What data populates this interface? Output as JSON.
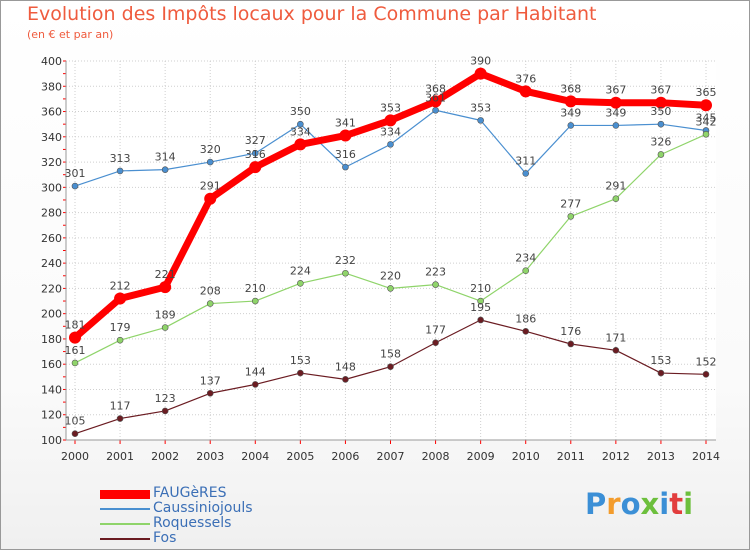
{
  "header": {
    "title": "Evolution des Impôts locaux pour la Commune par Habitant",
    "subtitle": "(en € et par an)"
  },
  "brand": {
    "logo_text": "Proxiti",
    "logo_colors": [
      "#3b8fd6",
      "#f39c2c",
      "#3b8fd6",
      "#6cbf3c",
      "#3b8fd6",
      "#e23d3d",
      "#6cbf3c"
    ]
  },
  "chart_data": {
    "type": "line",
    "title": "Evolution des Impôts locaux pour la Commune par Habitant",
    "subtitle": "(en € et par an)",
    "xlabel": "",
    "ylabel": "",
    "x": [
      "2000",
      "2001",
      "2002",
      "2003",
      "2004",
      "2005",
      "2006",
      "2007",
      "2008",
      "2009",
      "2010",
      "2011",
      "2012",
      "2013",
      "2014"
    ],
    "ylim": [
      100,
      400
    ],
    "yticks": [
      100,
      120,
      140,
      160,
      180,
      200,
      220,
      240,
      260,
      280,
      300,
      320,
      340,
      360,
      380,
      400
    ],
    "grid": true,
    "legend": "bottom-left",
    "series": [
      {
        "name": "FAUGèRES",
        "color": "#ff0000",
        "values": [
          181,
          212,
          221,
          291,
          316,
          334,
          341,
          353,
          368,
          390,
          376,
          368,
          367,
          367,
          365
        ],
        "labels": [
          "181",
          "212",
          "221",
          "291",
          "316",
          "334",
          "341",
          "353",
          "368",
          "390",
          "376",
          "368",
          "367",
          "367",
          "365"
        ]
      },
      {
        "name": "Caussiniojouls",
        "color": "#4a8fd0",
        "values": [
          301,
          313,
          314,
          320,
          327,
          350,
          316,
          334,
          361,
          353,
          311,
          349,
          349,
          350,
          345
        ],
        "labels": [
          "301",
          "313",
          "314",
          "320",
          "327",
          "350",
          "316",
          "334",
          "361",
          "353",
          "311",
          "349",
          "349",
          "350",
          "345"
        ]
      },
      {
        "name": "Roquessels",
        "color": "#8fd46a",
        "values": [
          161,
          179,
          189,
          208,
          210,
          224,
          232,
          220,
          223,
          210,
          234,
          277,
          291,
          326,
          342
        ],
        "labels": [
          "161",
          "179",
          "189",
          "208",
          "210",
          "224",
          "232",
          "220",
          "223",
          "210",
          "234",
          "277",
          "291",
          "326",
          "342"
        ]
      },
      {
        "name": "Fos",
        "color": "#6b1c22",
        "values": [
          105,
          117,
          123,
          137,
          144,
          153,
          148,
          158,
          177,
          195,
          186,
          176,
          171,
          153,
          152
        ],
        "labels": [
          "105",
          "117",
          "123",
          "137",
          "144",
          "153",
          "148",
          "158",
          "177",
          "195",
          "186",
          "176",
          "171",
          "153",
          "152"
        ]
      }
    ]
  }
}
